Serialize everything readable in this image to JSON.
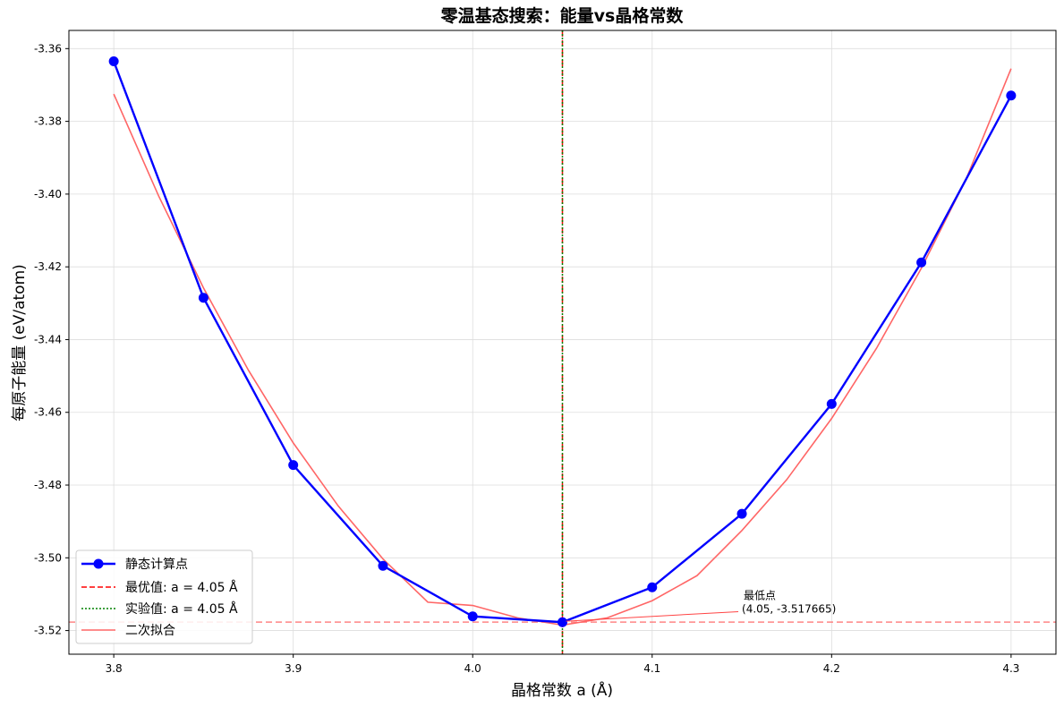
{
  "chart_data": {
    "type": "line",
    "title": "零温基态搜索：能量vs晶格常数",
    "xlabel": "晶格常数 a (Å)",
    "ylabel": "每原子能量 (eV/atom)",
    "xlim": [
      3.775,
      4.325
    ],
    "ylim": [
      -3.5265,
      -3.355
    ],
    "x_ticks": [
      3.8,
      3.9,
      4.0,
      4.1,
      4.2,
      4.3
    ],
    "x_tick_labels": [
      "3.8",
      "3.9",
      "4.0",
      "4.1",
      "4.2",
      "4.3"
    ],
    "y_ticks": [
      -3.36,
      -3.38,
      -3.4,
      -3.42,
      -3.44,
      -3.46,
      -3.48,
      -3.5,
      -3.52
    ],
    "y_tick_labels": [
      "-3.36",
      "-3.38",
      "-3.40",
      "-3.42",
      "-3.44",
      "-3.46",
      "-3.48",
      "-3.50",
      "-3.52"
    ],
    "grid": true,
    "legend_position": "lower-left",
    "series": [
      {
        "name": "静态计算点",
        "kind": "line-marker",
        "color": "#0000ff",
        "x": [
          3.8,
          3.85,
          3.9,
          3.95,
          4.0,
          4.05,
          4.1,
          4.15,
          4.2,
          4.25,
          4.3
        ],
        "y": [
          -3.3635,
          -3.4285,
          -3.4745,
          -3.5022,
          -3.5161,
          -3.5177,
          -3.5081,
          -3.4879,
          -3.4577,
          -3.4188,
          -3.3729
        ]
      },
      {
        "name": "二次拟合",
        "kind": "fit-curve",
        "color": "#ff6666",
        "x": [
          3.8,
          3.825,
          3.85,
          3.875,
          3.9,
          3.925,
          3.95,
          3.975,
          4.0,
          4.025,
          4.05,
          4.075,
          4.1,
          4.125,
          4.15,
          4.175,
          4.2,
          4.225,
          4.25,
          4.275,
          4.3
        ],
        "y": [
          -3.3725,
          -3.4005,
          -3.4258,
          -3.4484,
          -3.4684,
          -3.4857,
          -3.5003,
          -3.5122,
          -3.5131,
          -3.5165,
          -3.5185,
          -3.5165,
          -3.5118,
          -3.5049,
          -3.4925,
          -3.4785,
          -3.4617,
          -3.4424,
          -3.4204,
          -3.3958,
          -3.3655
        ]
      }
    ],
    "reference_lines": [
      {
        "name": "最优值: a = 4.05 Å",
        "orientation": "vertical",
        "value": 4.05,
        "color": "#ff0000",
        "style": "dashed"
      },
      {
        "name": "实验值: a = 4.05 Å",
        "orientation": "vertical",
        "value": 4.05,
        "color": "#008000",
        "style": "dotted"
      },
      {
        "orientation": "horizontal",
        "value": -3.517665,
        "color": "#ff6666",
        "style": "dashed"
      }
    ],
    "annotation": {
      "label_line1": "最低点",
      "label_line2": "(4.05, -3.517665)",
      "point": [
        4.05,
        -3.517665
      ],
      "text_at": [
        4.15,
        -3.5148
      ]
    }
  }
}
